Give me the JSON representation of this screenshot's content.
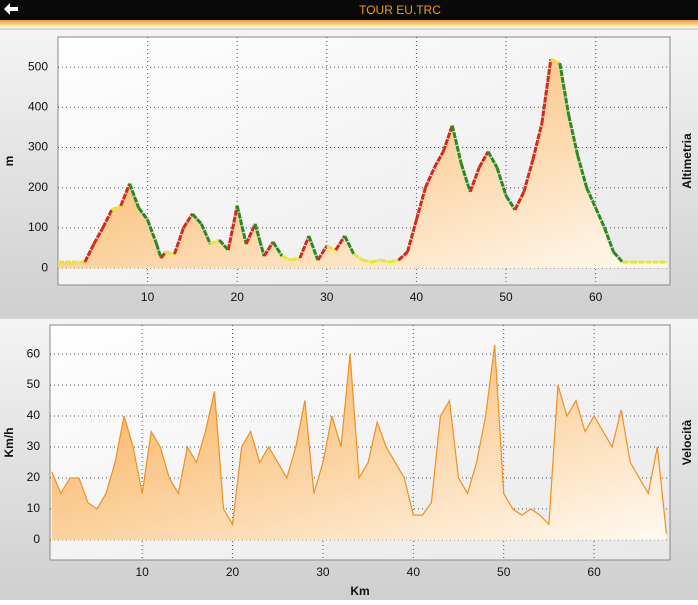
{
  "header": {
    "title": "TOUR EU.TRC"
  },
  "chart_data": [
    {
      "type": "area",
      "ylabel": "m",
      "side_label": "Altimetria",
      "x": [
        0,
        3,
        4,
        5,
        6,
        7,
        8,
        9,
        10,
        11,
        11.5,
        12,
        13,
        14,
        15,
        16,
        17,
        18,
        19,
        20,
        21,
        22,
        22.5,
        23,
        24,
        25,
        26,
        27,
        28,
        29,
        30,
        31,
        32,
        33,
        34,
        35,
        36,
        37,
        38,
        39,
        40,
        41,
        42,
        43,
        44,
        45,
        46,
        47,
        48,
        49,
        50,
        51,
        52,
        53,
        54,
        55,
        56,
        57,
        58,
        59,
        60,
        61,
        62,
        63,
        64,
        68
      ],
      "series": [
        {
          "color": "#f7b04a",
          "values": [
            15,
            15,
            60,
            100,
            145,
            155,
            210,
            150,
            120,
            60,
            25,
            40,
            35,
            100,
            135,
            110,
            60,
            70,
            45,
            155,
            60,
            110,
            70,
            30,
            65,
            30,
            20,
            25,
            80,
            20,
            55,
            45,
            80,
            35,
            20,
            15,
            20,
            15,
            20,
            40,
            120,
            200,
            250,
            290,
            355,
            260,
            190,
            250,
            290,
            250,
            180,
            145,
            190,
            270,
            360,
            520,
            510,
            380,
            280,
            200,
            150,
            100,
            40,
            15,
            15,
            15
          ]
        }
      ],
      "line_colors": {
        "up": "#d42a16",
        "down": "#2a8a22",
        "flat": "#e6e62a"
      },
      "xlim": [
        0,
        68.3
      ],
      "xticks": [
        10,
        20,
        30,
        40,
        50,
        60
      ],
      "ylim": [
        -42,
        575
      ],
      "yticks": [
        0,
        100,
        200,
        300,
        400,
        500
      ],
      "grid": true
    },
    {
      "type": "area",
      "ylabel": "Km/h",
      "side_label": "Velocità",
      "xlabel": "Km",
      "x": [
        0,
        1,
        2,
        3,
        4,
        5,
        6,
        7,
        8,
        9,
        10,
        11,
        12,
        13,
        14,
        15,
        16,
        17,
        18,
        19,
        20,
        21,
        22,
        23,
        24,
        25,
        26,
        27,
        28,
        29,
        30,
        31,
        32,
        33,
        34,
        35,
        36,
        37,
        38,
        39,
        40,
        41,
        42,
        43,
        44,
        45,
        46,
        47,
        48,
        49,
        50,
        51,
        52,
        53,
        54,
        55,
        56,
        57,
        58,
        59,
        60,
        61,
        62,
        63,
        64,
        65,
        66,
        67,
        68
      ],
      "series": [
        {
          "color": "#f0901e",
          "values": [
            22,
            15,
            20,
            20,
            12,
            10,
            15,
            25,
            40,
            30,
            15,
            35,
            30,
            20,
            15,
            30,
            25,
            35,
            48,
            10,
            5,
            30,
            35,
            25,
            30,
            25,
            20,
            30,
            45,
            15,
            25,
            40,
            30,
            60,
            20,
            25,
            38,
            30,
            25,
            20,
            8,
            8,
            12,
            40,
            45,
            20,
            15,
            25,
            40,
            63,
            15,
            10,
            8,
            10,
            8,
            5,
            50,
            40,
            45,
            35,
            40,
            35,
            30,
            42,
            25,
            20,
            15,
            30,
            2
          ]
        }
      ],
      "xlim": [
        -0.2,
        68.4
      ],
      "xticks": [
        10,
        20,
        30,
        40,
        50,
        60
      ],
      "ylim": [
        -6.5,
        69.4
      ],
      "yticks": [
        0,
        10,
        20,
        30,
        40,
        50,
        60
      ],
      "grid": true
    }
  ]
}
